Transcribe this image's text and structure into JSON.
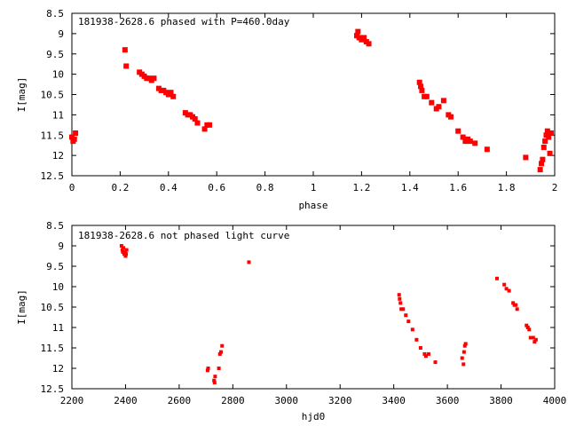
{
  "chart_data": [
    {
      "type": "scatter",
      "title": "181938-2628.6 phased with P=460.0day",
      "xlabel": "phase",
      "ylabel": "I[mag]",
      "xlim": [
        0,
        2
      ],
      "ylim": [
        12.5,
        8.5
      ],
      "y_inverted": true,
      "xticks": [
        0,
        0.2,
        0.4,
        0.6,
        0.8,
        1,
        1.2,
        1.4,
        1.6,
        1.8,
        2
      ],
      "xtick_labels": [
        "0",
        "0.2",
        "0.4",
        "0.6",
        "0.8",
        "1",
        "1.2",
        "1.4",
        "1.6",
        "1.8",
        "2"
      ],
      "yticks": [
        8.5,
        9,
        9.5,
        10,
        10.5,
        11,
        11.5,
        12,
        12.5
      ],
      "ytick_labels": [
        "8.5",
        "9",
        "9.5",
        "10",
        "10.5",
        "11",
        "11.5",
        "12",
        "12.5"
      ],
      "grid": false,
      "marker_color": "#ff0000",
      "series": [
        {
          "x": [
            0.0,
            0.005,
            0.01,
            0.015,
            0.22,
            0.225,
            0.28,
            0.29,
            0.3,
            0.31,
            0.32,
            0.33,
            0.34,
            0.36,
            0.37,
            0.38,
            0.39,
            0.4,
            0.41,
            0.42,
            0.47,
            0.48,
            0.49,
            0.5,
            0.51,
            0.52,
            0.55,
            0.56,
            0.57,
            1.18,
            1.185,
            1.19,
            1.2,
            1.21,
            1.22,
            1.23,
            1.44,
            1.445,
            1.45,
            1.46,
            1.47,
            1.49,
            1.51,
            1.52,
            1.54,
            1.56,
            1.57,
            1.6,
            1.62,
            1.63,
            1.64,
            1.65,
            1.67,
            1.72,
            1.88,
            1.94,
            1.945,
            1.95,
            1.955,
            1.96,
            1.965,
            1.97,
            1.975,
            1.98,
            1.985
          ],
          "y": [
            11.55,
            11.65,
            11.6,
            11.45,
            9.4,
            9.8,
            9.95,
            10.0,
            10.05,
            10.1,
            10.1,
            10.15,
            10.1,
            10.35,
            10.4,
            10.4,
            10.45,
            10.5,
            10.45,
            10.55,
            10.95,
            11.0,
            11.0,
            11.05,
            11.1,
            11.2,
            11.35,
            11.25,
            11.25,
            9.05,
            8.95,
            9.1,
            9.15,
            9.1,
            9.2,
            9.25,
            10.2,
            10.3,
            10.4,
            10.55,
            10.55,
            10.7,
            10.85,
            10.8,
            10.65,
            11.0,
            11.05,
            11.4,
            11.55,
            11.65,
            11.6,
            11.65,
            11.7,
            11.85,
            12.05,
            12.35,
            12.2,
            12.1,
            11.8,
            11.65,
            11.5,
            11.4,
            11.55,
            11.95,
            11.45
          ]
        }
      ]
    },
    {
      "type": "scatter",
      "title": "181938-2628.6 not phased light curve",
      "xlabel": "hjd0",
      "ylabel": "I[mag]",
      "xlim": [
        2200,
        4000
      ],
      "ylim": [
        12.5,
        8.5
      ],
      "y_inverted": true,
      "xticks": [
        2200,
        2400,
        2600,
        2800,
        3000,
        3200,
        3400,
        3600,
        3800,
        4000
      ],
      "xtick_labels": [
        "2200",
        "2400",
        "2600",
        "2800",
        "3000",
        "3200",
        "3400",
        "3600",
        "3800",
        "4000"
      ],
      "yticks": [
        8.5,
        9,
        9.5,
        10,
        10.5,
        11,
        11.5,
        12,
        12.5
      ],
      "ytick_labels": [
        "8.5",
        "9",
        "9.5",
        "10",
        "10.5",
        "11",
        "11.5",
        "12",
        "12.5"
      ],
      "grid": false,
      "marker_color": "#ff0000",
      "series": [
        {
          "x": [
            2385,
            2388,
            2390,
            2392,
            2395,
            2398,
            2400,
            2402,
            2404,
            2706,
            2708,
            2730,
            2732,
            2734,
            2748,
            2752,
            2756,
            2760,
            2860,
            3420,
            3422,
            3425,
            3428,
            3435,
            3445,
            3455,
            3470,
            3485,
            3500,
            3515,
            3520,
            3530,
            3555,
            3655,
            3660,
            3662,
            3665,
            3668,
            3785,
            3812,
            3820,
            3830,
            3845,
            3850,
            3855,
            3860,
            3895,
            3900,
            3905,
            3910,
            3920,
            3925,
            3930
          ],
          "y": [
            9.0,
            9.1,
            9.15,
            9.05,
            9.2,
            9.15,
            9.25,
            9.2,
            9.1,
            12.05,
            12.0,
            12.3,
            12.35,
            12.2,
            12.0,
            11.65,
            11.6,
            11.45,
            9.4,
            10.2,
            10.3,
            10.4,
            10.55,
            10.55,
            10.7,
            10.85,
            11.05,
            11.3,
            11.5,
            11.65,
            11.7,
            11.65,
            11.85,
            11.75,
            11.9,
            11.6,
            11.45,
            11.4,
            9.8,
            9.95,
            10.05,
            10.1,
            10.4,
            10.45,
            10.45,
            10.55,
            10.95,
            11.0,
            11.05,
            11.25,
            11.25,
            11.35,
            11.3
          ]
        }
      ]
    }
  ]
}
